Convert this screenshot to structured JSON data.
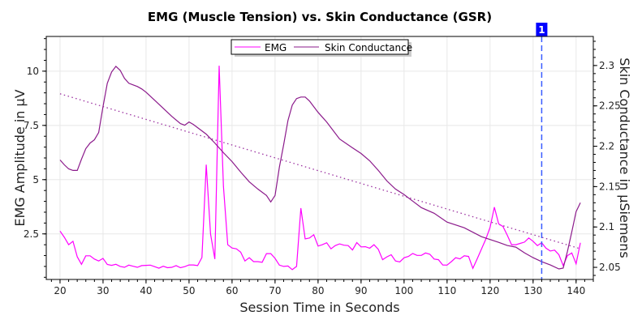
{
  "chart_data": {
    "type": "line",
    "title": "EMG (Muscle Tension) vs. Skin Conductance (GSR)",
    "xlabel": "Session Time in Seconds",
    "ylabel_left": "EMG Amplitude in µV",
    "ylabel_right": "Skin Conductance in µSiemens",
    "xlim": [
      16.8,
      144
    ],
    "ylim_left": [
      0.4,
      11.6
    ],
    "ylim_right": [
      2.035,
      2.336
    ],
    "x_ticks": [
      20,
      30,
      40,
      50,
      60,
      70,
      80,
      90,
      100,
      110,
      120,
      130,
      140
    ],
    "y_left_ticks": [
      "2.5",
      "5",
      "7.5",
      "10"
    ],
    "y_right_ticks": [
      "2.05",
      "2.1",
      "2.15",
      "2.2",
      "2.25",
      "2.3"
    ],
    "grid": true,
    "legend_placement": "top-center",
    "colors": {
      "emg": "#ff00ff",
      "gsr": "#8b1a8b",
      "trend": "#9b30a0",
      "marker": "#3a5cff",
      "marker_label_bg": "#0000ff"
    },
    "series": [
      {
        "name": "EMG",
        "axis": "left",
        "x": [
          20,
          21,
          22,
          23,
          24,
          25,
          26,
          27,
          28,
          29,
          30,
          31,
          32,
          33,
          34,
          35,
          36,
          37,
          38,
          39,
          40,
          41,
          42,
          43,
          44,
          45,
          46,
          47,
          48,
          49,
          50,
          51,
          52,
          53,
          54,
          55,
          56,
          57,
          58,
          59,
          60,
          61,
          62,
          63,
          64,
          65,
          66,
          67,
          68,
          69,
          70,
          71,
          72,
          73,
          74,
          75,
          76,
          77,
          78,
          79,
          80,
          81,
          82,
          83,
          84,
          85,
          86,
          87,
          88,
          89,
          90,
          91,
          92,
          93,
          94,
          95,
          96,
          97,
          98,
          99,
          100,
          101,
          102,
          103,
          104,
          105,
          106,
          107,
          108,
          109,
          110,
          111,
          112,
          113,
          114,
          115,
          116,
          117,
          118,
          119,
          120,
          121,
          122,
          123,
          124,
          125,
          126,
          127,
          128,
          129,
          130,
          131,
          132,
          133,
          134,
          135,
          136,
          137,
          138,
          139,
          140,
          141
        ],
        "y": [
          2.63,
          2.34,
          2.0,
          2.16,
          1.44,
          1.1,
          1.49,
          1.49,
          1.34,
          1.25,
          1.37,
          1.09,
          1.05,
          1.1,
          1.0,
          0.96,
          1.06,
          1.01,
          0.96,
          1.04,
          1.05,
          1.06,
          0.99,
          0.92,
          1.01,
          0.94,
          0.96,
          1.04,
          0.94,
          0.99,
          1.07,
          1.07,
          1.04,
          1.41,
          5.69,
          2.5,
          1.34,
          10.25,
          4.69,
          2.0,
          1.85,
          1.81,
          1.66,
          1.25,
          1.4,
          1.22,
          1.22,
          1.19,
          1.59,
          1.59,
          1.37,
          1.06,
          1.0,
          1.02,
          0.85,
          1.0,
          3.69,
          2.27,
          2.31,
          2.46,
          1.94,
          2.0,
          2.09,
          1.81,
          1.96,
          2.04,
          1.98,
          1.96,
          1.76,
          2.1,
          1.9,
          1.91,
          1.84,
          2.0,
          1.79,
          1.31,
          1.44,
          1.54,
          1.25,
          1.21,
          1.4,
          1.46,
          1.6,
          1.51,
          1.51,
          1.62,
          1.56,
          1.34,
          1.31,
          1.07,
          1.06,
          1.22,
          1.4,
          1.35,
          1.49,
          1.46,
          0.91,
          1.35,
          1.8,
          2.25,
          2.8,
          3.73,
          2.96,
          2.84,
          2.44,
          2.0,
          2.0,
          2.06,
          2.12,
          2.31,
          2.16,
          1.96,
          2.09,
          1.84,
          1.71,
          1.75,
          1.54,
          1.04,
          1.5,
          1.62,
          1.12,
          2.09
        ]
      },
      {
        "name": "Skin Conductance",
        "axis": "right",
        "x": [
          20,
          21,
          22,
          23,
          24,
          25,
          26,
          27,
          28,
          29,
          30,
          31,
          32,
          33,
          34,
          35,
          36,
          37,
          38,
          39,
          40,
          42,
          44,
          46,
          48,
          49,
          50,
          51,
          52,
          54,
          56,
          58,
          60,
          62,
          64,
          66,
          68,
          69,
          70,
          71,
          72,
          73,
          74,
          75,
          76,
          77,
          78,
          80,
          82,
          85,
          88,
          90,
          92,
          94,
          96,
          98,
          100,
          102,
          104,
          107,
          110,
          114,
          118,
          122,
          124,
          126,
          128,
          130,
          132,
          134,
          136,
          137,
          138,
          139,
          140,
          141
        ],
        "y": [
          2.183,
          2.177,
          2.172,
          2.17,
          2.17,
          2.184,
          2.197,
          2.204,
          2.208,
          2.217,
          2.249,
          2.278,
          2.292,
          2.299,
          2.294,
          2.284,
          2.278,
          2.276,
          2.274,
          2.271,
          2.267,
          2.257,
          2.247,
          2.237,
          2.228,
          2.226,
          2.23,
          2.227,
          2.223,
          2.215,
          2.204,
          2.192,
          2.181,
          2.168,
          2.156,
          2.147,
          2.139,
          2.131,
          2.139,
          2.174,
          2.202,
          2.232,
          2.251,
          2.259,
          2.261,
          2.261,
          2.256,
          2.242,
          2.23,
          2.209,
          2.198,
          2.191,
          2.182,
          2.17,
          2.157,
          2.147,
          2.14,
          2.132,
          2.124,
          2.117,
          2.106,
          2.099,
          2.088,
          2.081,
          2.077,
          2.075,
          2.068,
          2.062,
          2.057,
          2.053,
          2.048,
          2.049,
          2.07,
          2.094,
          2.119,
          2.13
        ]
      }
    ],
    "trend_line": {
      "axis": "right",
      "x": [
        20,
        141
      ],
      "y": [
        2.265,
        2.073
      ],
      "style": "dotted"
    },
    "marker": {
      "x": 132,
      "label": "1",
      "style": "dashed"
    }
  }
}
